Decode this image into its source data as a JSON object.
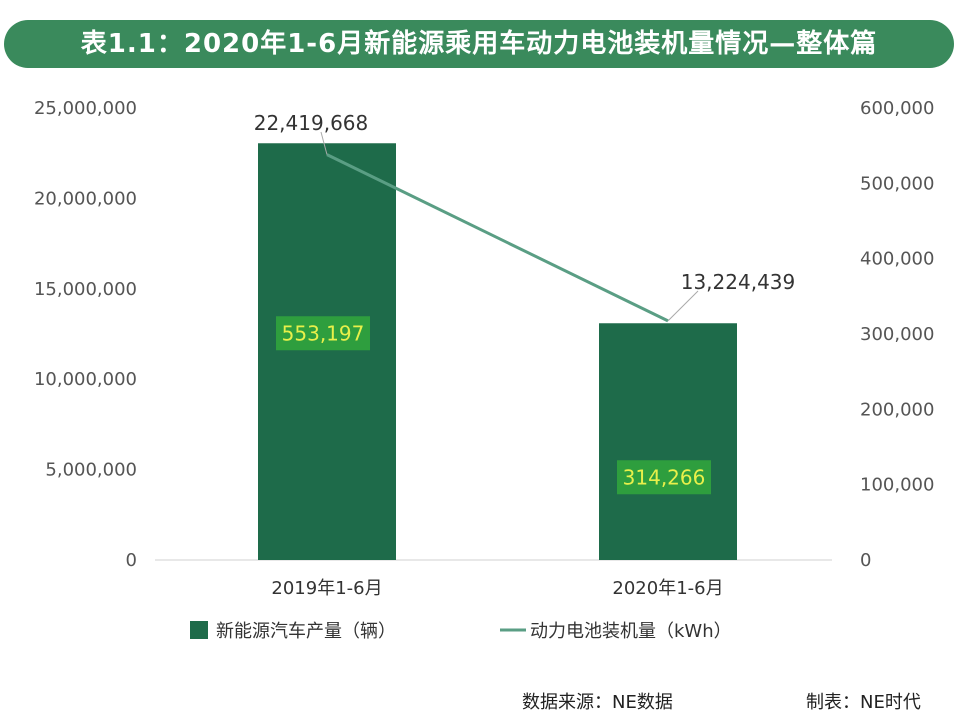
{
  "title": "表1.1：2020年1-6月新能源乘用车动力电池装机量情况—整体篇",
  "footer": {
    "source": "数据来源：NE数据",
    "maker": "制表：NE时代"
  },
  "colors": {
    "title_bg": "#3a8a5c",
    "bar": "#1e6b4a",
    "line": "#5a9e84",
    "bar_label_bg": "#2e9e3e",
    "bar_label_text": "#e8f04a"
  },
  "chart_data": {
    "type": "bar",
    "categories": [
      "2019年1-6月",
      "2020年1-6月"
    ],
    "series": [
      {
        "name": "新能源汽车产量（辆）",
        "type": "bar",
        "axis": "right",
        "values": [
          553197,
          314266
        ],
        "labels": [
          "553,197",
          "314,266"
        ]
      },
      {
        "name": "动力电池装机量（kWh）",
        "type": "line",
        "axis": "left",
        "values": [
          22419668,
          13224439
        ],
        "labels": [
          "22,419,668",
          "13,224,439"
        ]
      }
    ],
    "y_left": {
      "range": [
        0,
        25000000
      ],
      "ticks": [
        "0",
        "5,000,000",
        "10,000,000",
        "15,000,000",
        "20,000,000",
        "25,000,000"
      ]
    },
    "y_right": {
      "range": [
        0,
        600000
      ],
      "ticks": [
        "0",
        "100,000",
        "200,000",
        "300,000",
        "400,000",
        "500,000",
        "600,000"
      ]
    },
    "legend_position": "bottom",
    "grid": false
  }
}
